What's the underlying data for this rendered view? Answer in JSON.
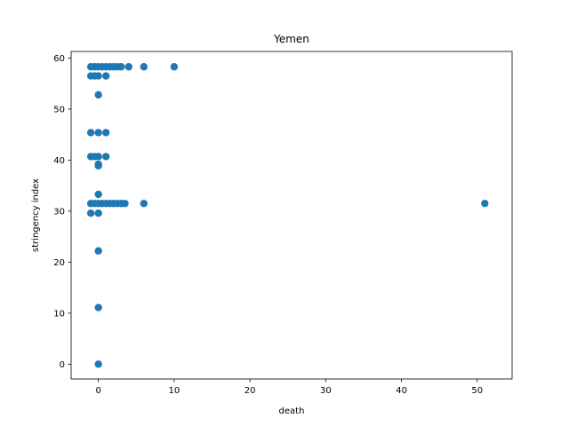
{
  "chart_data": {
    "type": "scatter",
    "title": "Yemen",
    "xlabel": "death",
    "ylabel": "stringency index",
    "xlim": [
      -3.6,
      54.6
    ],
    "ylim": [
      -2.9,
      61.3
    ],
    "xticks": [
      0,
      10,
      20,
      30,
      40,
      50
    ],
    "yticks": [
      0,
      10,
      20,
      30,
      40,
      50,
      60
    ],
    "xtick_labels": [
      "0",
      "10",
      "20",
      "30",
      "40",
      "50"
    ],
    "ytick_labels": [
      "0",
      "10",
      "20",
      "30",
      "40",
      "50",
      "60"
    ],
    "grid": false,
    "legend": "none",
    "colors": {
      "points": "#1f77b4"
    },
    "series": [
      {
        "points": [
          [
            0,
            0
          ],
          [
            0,
            11.1
          ],
          [
            0,
            22.2
          ],
          [
            0,
            29.6
          ],
          [
            -1,
            29.6
          ],
          [
            0,
            33.3
          ],
          [
            -1,
            31.5
          ],
          [
            -0.5,
            31.5
          ],
          [
            0,
            31.5
          ],
          [
            0.5,
            31.5
          ],
          [
            1,
            31.5
          ],
          [
            1.5,
            31.5
          ],
          [
            2,
            31.5
          ],
          [
            2.5,
            31.5
          ],
          [
            3,
            31.5
          ],
          [
            3.5,
            31.5
          ],
          [
            6,
            31.5
          ],
          [
            51,
            31.5
          ],
          [
            0,
            38.9
          ],
          [
            0,
            39.2
          ],
          [
            -1,
            40.7
          ],
          [
            -0.5,
            40.7
          ],
          [
            0,
            40.7
          ],
          [
            1,
            40.7
          ],
          [
            -1,
            45.4
          ],
          [
            0,
            45.4
          ],
          [
            1,
            45.4
          ],
          [
            0,
            52.8
          ],
          [
            -1,
            56.5
          ],
          [
            -0.5,
            56.5
          ],
          [
            0,
            56.5
          ],
          [
            1,
            56.5
          ],
          [
            -1,
            58.3
          ],
          [
            -0.5,
            58.3
          ],
          [
            0,
            58.3
          ],
          [
            0.5,
            58.3
          ],
          [
            1,
            58.3
          ],
          [
            1.5,
            58.3
          ],
          [
            2,
            58.3
          ],
          [
            2.5,
            58.3
          ],
          [
            3,
            58.3
          ],
          [
            4,
            58.3
          ],
          [
            6,
            58.3
          ],
          [
            10,
            58.3
          ]
        ]
      }
    ]
  }
}
